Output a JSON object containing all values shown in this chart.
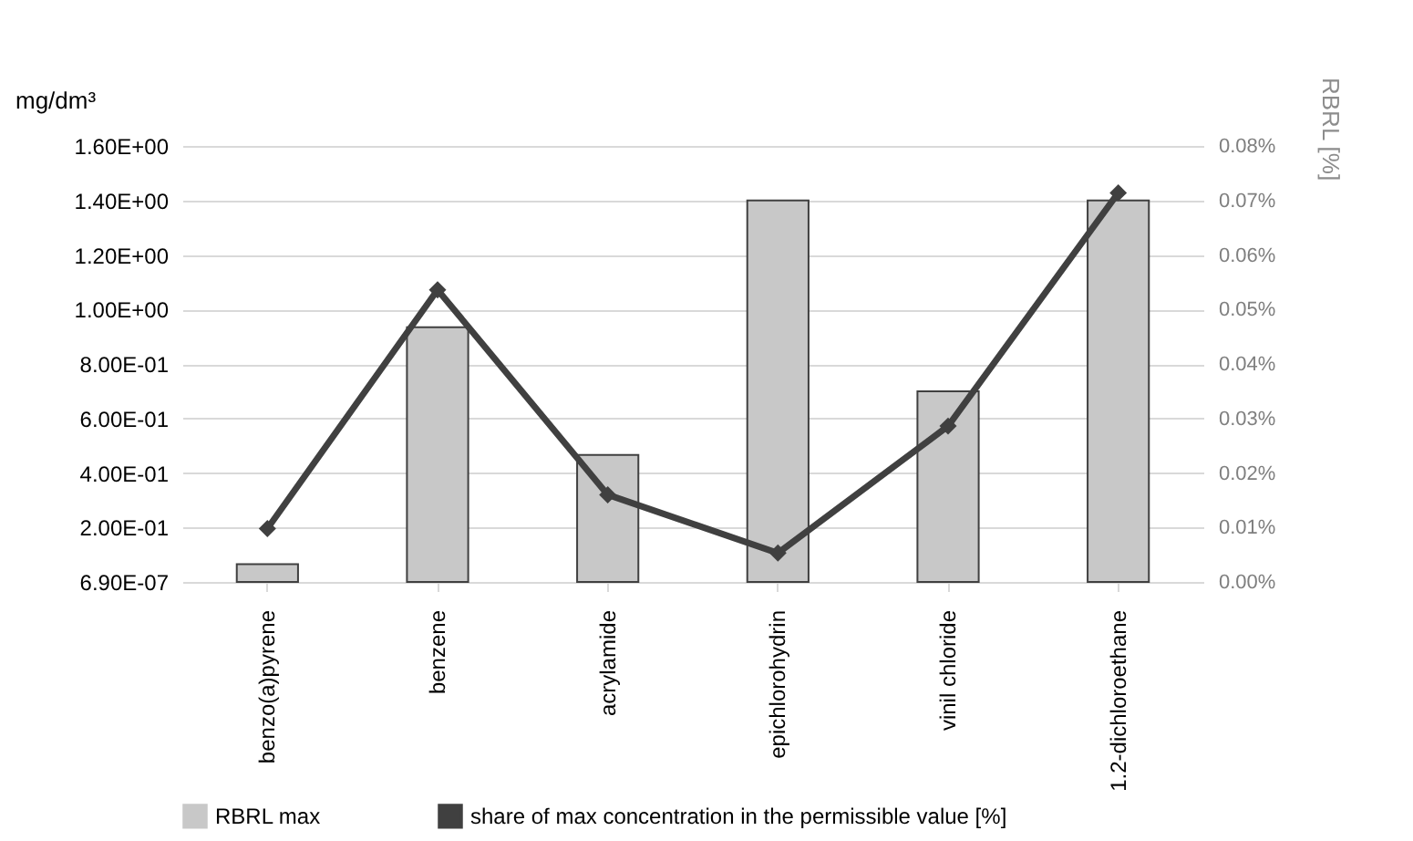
{
  "chart_data": {
    "type": "bar",
    "ylabel": "mg/dm³",
    "y2label": "RBRL [%]",
    "categories": [
      "benzo(a)pyrene",
      "benzene",
      "acrylamide",
      "epichlorohydrin",
      "vinil chloride",
      "1.2-dichloroethane"
    ],
    "series": [
      {
        "name": "RBRL max",
        "color": "#c8c8c8",
        "values": [
          0.065,
          0.935,
          0.466,
          1.4,
          0.7,
          1.4
        ]
      },
      {
        "name": "share of max concentration in the permissible value [%]",
        "type": "line",
        "axis": "y2",
        "color": "#404040",
        "marker": "diamond",
        "values": [
          0.0098,
          0.0536,
          0.016,
          0.0053,
          0.0286,
          0.0714
        ]
      }
    ],
    "ylim": [
      6.9e-07,
      1.6
    ],
    "yticks": [
      {
        "value": 6.9e-07,
        "label": "6.90E-07"
      },
      {
        "value": 0.2,
        "label": "2.00E-01"
      },
      {
        "value": 0.4,
        "label": "4.00E-01"
      },
      {
        "value": 0.6,
        "label": "6.00E-01"
      },
      {
        "value": 0.8,
        "label": "8.00E-01"
      },
      {
        "value": 1,
        "label": "1.00E+00"
      },
      {
        "value": 1.2,
        "label": "1.20E+00"
      },
      {
        "value": 1.4,
        "label": "1.40E+00"
      },
      {
        "value": 1.6,
        "label": "1.60E+00"
      }
    ],
    "y2lim": [
      0,
      0.08
    ],
    "y2ticks": [
      {
        "value": 0,
        "label": "0.00%"
      },
      {
        "value": 0.01,
        "label": "0.01%"
      },
      {
        "value": 0.02,
        "label": "0.02%"
      },
      {
        "value": 0.03,
        "label": "0.03%"
      },
      {
        "value": 0.04,
        "label": "0.04%"
      },
      {
        "value": 0.05,
        "label": "0.05%"
      },
      {
        "value": 0.06,
        "label": "0.06%"
      },
      {
        "value": 0.07,
        "label": "0.07%"
      },
      {
        "value": 0.08,
        "label": "0.08%"
      }
    ],
    "grid": "y",
    "legend": "bottom"
  }
}
